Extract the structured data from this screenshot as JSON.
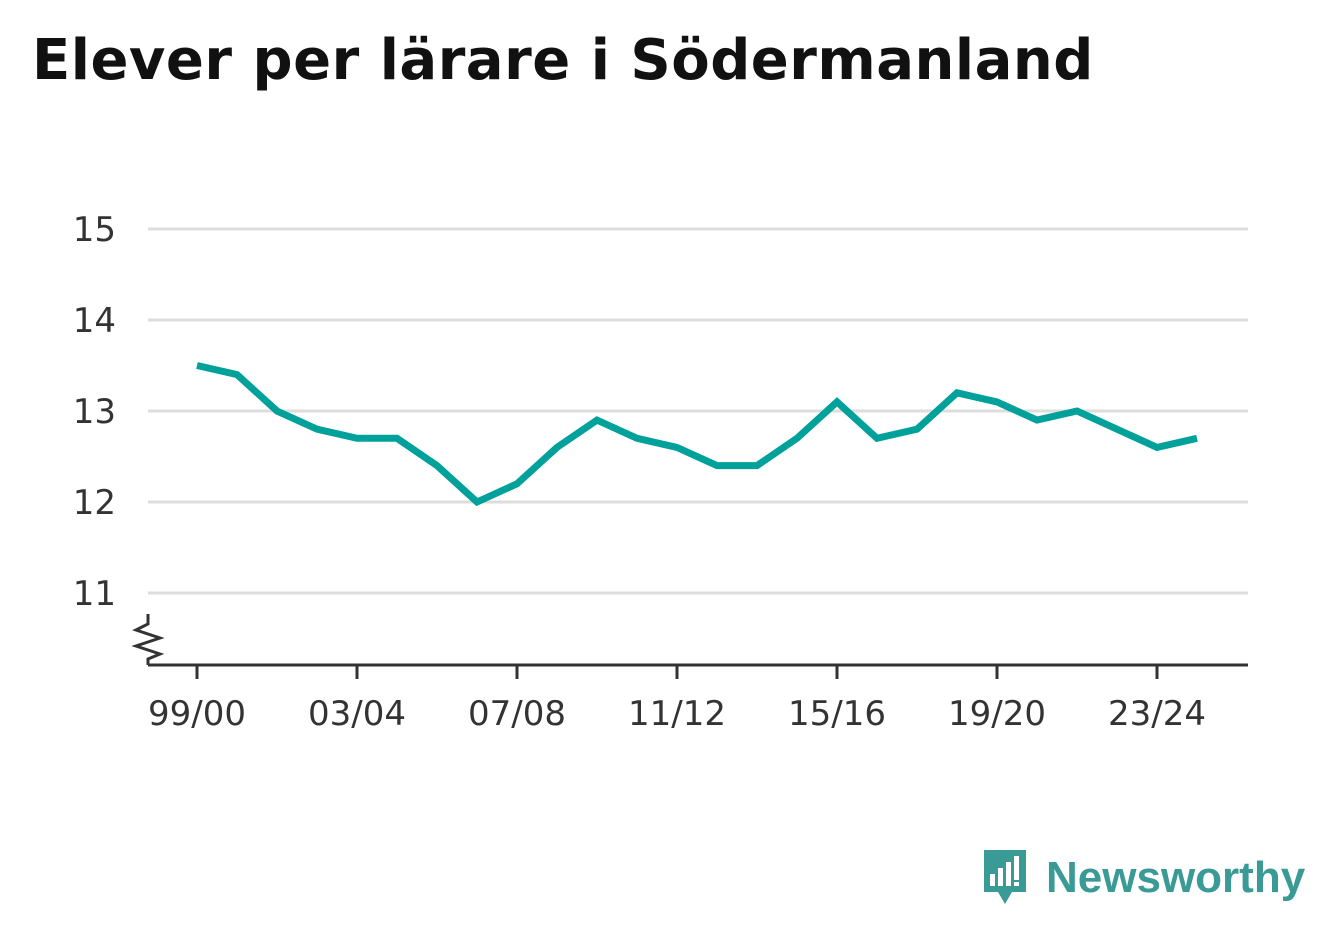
{
  "title": "Elever per lärare i Södermanland",
  "brand": {
    "name": "Newsworthy",
    "icon": "newsworthy-bar-chart-icon",
    "color": "#3a9a96"
  },
  "colors": {
    "line": "#00a19a",
    "grid": "#dddddd",
    "axis": "#333333"
  },
  "chart_data": {
    "type": "line",
    "title": "Elever per lärare i Södermanland",
    "xlabel": "",
    "ylabel": "",
    "categories": [
      "99/00",
      "00/01",
      "01/02",
      "02/03",
      "03/04",
      "04/05",
      "05/06",
      "06/07",
      "07/08",
      "08/09",
      "09/10",
      "10/11",
      "11/12",
      "12/13",
      "13/14",
      "14/15",
      "15/16",
      "16/17",
      "17/18",
      "18/19",
      "19/20",
      "20/21",
      "21/22",
      "22/23",
      "23/24",
      "24/25"
    ],
    "tick_labels": [
      "99/00",
      "03/04",
      "07/08",
      "11/12",
      "15/16",
      "19/20",
      "23/24"
    ],
    "series": [
      {
        "values": [
          13.5,
          13.4,
          13.0,
          12.8,
          12.7,
          12.7,
          12.4,
          12.0,
          12.2,
          12.6,
          12.9,
          12.7,
          12.6,
          12.4,
          12.4,
          12.7,
          13.1,
          12.7,
          12.8,
          13.2,
          13.1,
          12.9,
          13.0,
          12.8,
          12.6,
          12.7
        ]
      }
    ],
    "yticks": [
      11,
      12,
      13,
      14,
      15
    ],
    "ylim": [
      10.2,
      15
    ],
    "axis_break": true,
    "grid": true,
    "legend": "none"
  }
}
